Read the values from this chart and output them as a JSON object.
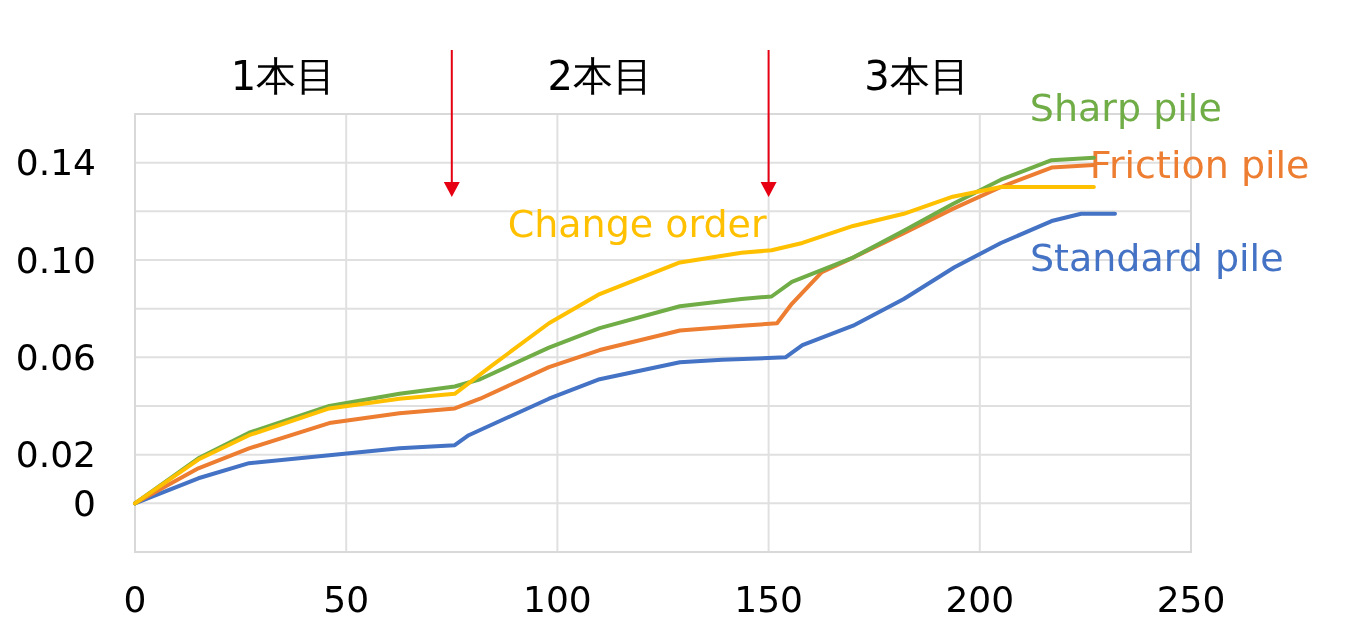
{
  "chart_data": {
    "type": "line",
    "annotations": [
      "1本目",
      "2本目",
      "3本目"
    ],
    "xlim": [
      0,
      250
    ],
    "xticks": [
      0,
      50,
      100,
      150,
      200,
      250
    ],
    "ylim": [
      -0.02,
      0.16
    ],
    "yticks": [
      0,
      0.02,
      {
        "value": 0.04,
        "label": null
      },
      0.06,
      {
        "value": 0.08,
        "label": null
      },
      {
        "value": 0.1,
        "label": "0.10"
      },
      {
        "value": 0.12,
        "label": null
      },
      0.14,
      {
        "value": 0.16,
        "label": null
      }
    ],
    "grid": true,
    "marker": "none",
    "line_style": "solid",
    "ref_lines": [
      {
        "axis": "x",
        "value": 75,
        "color": "#e60012"
      },
      {
        "axis": "x",
        "value": 150,
        "color": "#e60012"
      }
    ],
    "series": [
      {
        "name": "Standard pile",
        "color": "#4472c4",
        "x": [
          0,
          15,
          27,
          46,
          62.6,
          75.7,
          79,
          98,
          110,
          129,
          139,
          154,
          158,
          170,
          182,
          194,
          205,
          217,
          224,
          232
        ],
        "values": [
          0,
          0.0103,
          0.0165,
          0.0198,
          0.0226,
          0.0239,
          0.028,
          0.043,
          0.051,
          0.058,
          0.059,
          0.06,
          0.065,
          0.073,
          0.084,
          0.097,
          0.107,
          0.116,
          0.119,
          0.119
        ]
      },
      {
        "name": "Friction pile",
        "color": "#ed7d31",
        "x": [
          0,
          15,
          27,
          46,
          62.6,
          75.7,
          81.7,
          98,
          110,
          129,
          143.6,
          152,
          155.5,
          162.6,
          170,
          182,
          193.6,
          205,
          217,
          227
        ],
        "values": [
          0,
          0.0144,
          0.0226,
          0.033,
          0.037,
          0.039,
          0.043,
          0.056,
          0.063,
          0.071,
          0.073,
          0.074,
          0.082,
          0.095,
          0.101,
          0.111,
          0.121,
          0.13,
          0.138,
          0.139
        ]
      },
      {
        "name": "Sharp pile",
        "color": "#70ad47",
        "x": [
          0,
          15,
          27,
          46,
          62.6,
          75.7,
          81.7,
          98,
          110,
          129,
          143.6,
          150.7,
          155.5,
          170,
          182,
          193.6,
          205,
          217,
          227
        ],
        "values": [
          0,
          0.0185,
          0.029,
          0.04,
          0.045,
          0.048,
          0.051,
          0.064,
          0.072,
          0.081,
          0.084,
          0.085,
          0.091,
          0.101,
          0.112,
          0.123,
          0.133,
          0.141,
          0.142
        ]
      },
      {
        "name": "Change order",
        "color": "#ffc000",
        "x": [
          0,
          15,
          27,
          46,
          62.6,
          75.7,
          84,
          98,
          110,
          129,
          143.6,
          150.7,
          158,
          170,
          182,
          193.6,
          205,
          217,
          227
        ],
        "values": [
          0,
          0.018,
          0.028,
          0.039,
          0.043,
          0.045,
          0.056,
          0.074,
          0.086,
          0.099,
          0.103,
          0.104,
          0.107,
          0.114,
          0.119,
          0.126,
          0.13,
          0.13,
          0.13
        ]
      }
    ]
  }
}
